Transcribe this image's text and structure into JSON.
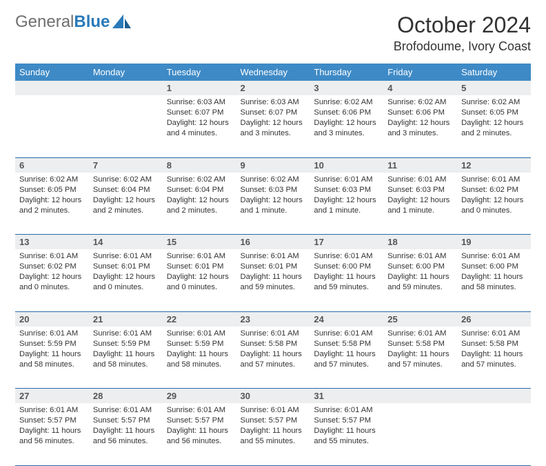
{
  "logo": {
    "text_part1": "General",
    "text_part2": "Blue"
  },
  "title": "October 2024",
  "location": "Brofodoume, Ivory Coast",
  "colors": {
    "header_bg": "#3e8ac6",
    "header_text": "#ffffff",
    "daynum_bg": "#eceeef",
    "rule": "#2a6aa5",
    "logo_gray": "#6f6f6f",
    "logo_blue": "#2a7ab9"
  },
  "weekdays": [
    "Sunday",
    "Monday",
    "Tuesday",
    "Wednesday",
    "Thursday",
    "Friday",
    "Saturday"
  ],
  "weeks": [
    [
      null,
      null,
      {
        "n": "1",
        "sr": "Sunrise: 6:03 AM",
        "ss": "Sunset: 6:07 PM",
        "dl": "Daylight: 12 hours and 4 minutes."
      },
      {
        "n": "2",
        "sr": "Sunrise: 6:03 AM",
        "ss": "Sunset: 6:07 PM",
        "dl": "Daylight: 12 hours and 3 minutes."
      },
      {
        "n": "3",
        "sr": "Sunrise: 6:02 AM",
        "ss": "Sunset: 6:06 PM",
        "dl": "Daylight: 12 hours and 3 minutes."
      },
      {
        "n": "4",
        "sr": "Sunrise: 6:02 AM",
        "ss": "Sunset: 6:06 PM",
        "dl": "Daylight: 12 hours and 3 minutes."
      },
      {
        "n": "5",
        "sr": "Sunrise: 6:02 AM",
        "ss": "Sunset: 6:05 PM",
        "dl": "Daylight: 12 hours and 2 minutes."
      }
    ],
    [
      {
        "n": "6",
        "sr": "Sunrise: 6:02 AM",
        "ss": "Sunset: 6:05 PM",
        "dl": "Daylight: 12 hours and 2 minutes."
      },
      {
        "n": "7",
        "sr": "Sunrise: 6:02 AM",
        "ss": "Sunset: 6:04 PM",
        "dl": "Daylight: 12 hours and 2 minutes."
      },
      {
        "n": "8",
        "sr": "Sunrise: 6:02 AM",
        "ss": "Sunset: 6:04 PM",
        "dl": "Daylight: 12 hours and 2 minutes."
      },
      {
        "n": "9",
        "sr": "Sunrise: 6:02 AM",
        "ss": "Sunset: 6:03 PM",
        "dl": "Daylight: 12 hours and 1 minute."
      },
      {
        "n": "10",
        "sr": "Sunrise: 6:01 AM",
        "ss": "Sunset: 6:03 PM",
        "dl": "Daylight: 12 hours and 1 minute."
      },
      {
        "n": "11",
        "sr": "Sunrise: 6:01 AM",
        "ss": "Sunset: 6:03 PM",
        "dl": "Daylight: 12 hours and 1 minute."
      },
      {
        "n": "12",
        "sr": "Sunrise: 6:01 AM",
        "ss": "Sunset: 6:02 PM",
        "dl": "Daylight: 12 hours and 0 minutes."
      }
    ],
    [
      {
        "n": "13",
        "sr": "Sunrise: 6:01 AM",
        "ss": "Sunset: 6:02 PM",
        "dl": "Daylight: 12 hours and 0 minutes."
      },
      {
        "n": "14",
        "sr": "Sunrise: 6:01 AM",
        "ss": "Sunset: 6:01 PM",
        "dl": "Daylight: 12 hours and 0 minutes."
      },
      {
        "n": "15",
        "sr": "Sunrise: 6:01 AM",
        "ss": "Sunset: 6:01 PM",
        "dl": "Daylight: 12 hours and 0 minutes."
      },
      {
        "n": "16",
        "sr": "Sunrise: 6:01 AM",
        "ss": "Sunset: 6:01 PM",
        "dl": "Daylight: 11 hours and 59 minutes."
      },
      {
        "n": "17",
        "sr": "Sunrise: 6:01 AM",
        "ss": "Sunset: 6:00 PM",
        "dl": "Daylight: 11 hours and 59 minutes."
      },
      {
        "n": "18",
        "sr": "Sunrise: 6:01 AM",
        "ss": "Sunset: 6:00 PM",
        "dl": "Daylight: 11 hours and 59 minutes."
      },
      {
        "n": "19",
        "sr": "Sunrise: 6:01 AM",
        "ss": "Sunset: 6:00 PM",
        "dl": "Daylight: 11 hours and 58 minutes."
      }
    ],
    [
      {
        "n": "20",
        "sr": "Sunrise: 6:01 AM",
        "ss": "Sunset: 5:59 PM",
        "dl": "Daylight: 11 hours and 58 minutes."
      },
      {
        "n": "21",
        "sr": "Sunrise: 6:01 AM",
        "ss": "Sunset: 5:59 PM",
        "dl": "Daylight: 11 hours and 58 minutes."
      },
      {
        "n": "22",
        "sr": "Sunrise: 6:01 AM",
        "ss": "Sunset: 5:59 PM",
        "dl": "Daylight: 11 hours and 58 minutes."
      },
      {
        "n": "23",
        "sr": "Sunrise: 6:01 AM",
        "ss": "Sunset: 5:58 PM",
        "dl": "Daylight: 11 hours and 57 minutes."
      },
      {
        "n": "24",
        "sr": "Sunrise: 6:01 AM",
        "ss": "Sunset: 5:58 PM",
        "dl": "Daylight: 11 hours and 57 minutes."
      },
      {
        "n": "25",
        "sr": "Sunrise: 6:01 AM",
        "ss": "Sunset: 5:58 PM",
        "dl": "Daylight: 11 hours and 57 minutes."
      },
      {
        "n": "26",
        "sr": "Sunrise: 6:01 AM",
        "ss": "Sunset: 5:58 PM",
        "dl": "Daylight: 11 hours and 57 minutes."
      }
    ],
    [
      {
        "n": "27",
        "sr": "Sunrise: 6:01 AM",
        "ss": "Sunset: 5:57 PM",
        "dl": "Daylight: 11 hours and 56 minutes."
      },
      {
        "n": "28",
        "sr": "Sunrise: 6:01 AM",
        "ss": "Sunset: 5:57 PM",
        "dl": "Daylight: 11 hours and 56 minutes."
      },
      {
        "n": "29",
        "sr": "Sunrise: 6:01 AM",
        "ss": "Sunset: 5:57 PM",
        "dl": "Daylight: 11 hours and 56 minutes."
      },
      {
        "n": "30",
        "sr": "Sunrise: 6:01 AM",
        "ss": "Sunset: 5:57 PM",
        "dl": "Daylight: 11 hours and 55 minutes."
      },
      {
        "n": "31",
        "sr": "Sunrise: 6:01 AM",
        "ss": "Sunset: 5:57 PM",
        "dl": "Daylight: 11 hours and 55 minutes."
      },
      null,
      null
    ]
  ]
}
